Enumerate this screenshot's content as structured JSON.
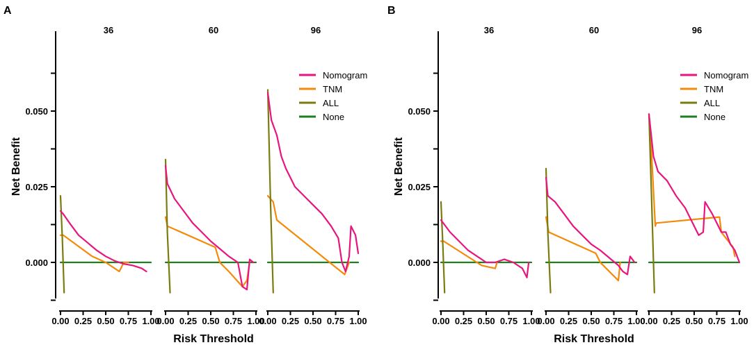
{
  "chart_data": [
    {
      "panel": "A",
      "type": "line",
      "facets": [
        "36",
        "60",
        "96"
      ],
      "xlabel": "Risk Threshold",
      "ylabel": "Net Benefit",
      "xlim": [
        0,
        1
      ],
      "ylim": [
        -0.015,
        0.075
      ],
      "xticks": [
        "0.00",
        "0.25",
        "0.50",
        "0.75",
        "1.00"
      ],
      "yticks": [
        "0.000",
        "0.025",
        "0.050"
      ],
      "legend": [
        "Nomogram",
        "TNM",
        "ALL",
        "None"
      ],
      "colors": {
        "Nomogram": "#e8157f",
        "TNM": "#f58a0a",
        "ALL": "#7b7b0e",
        "None": "#1e7d1e"
      },
      "series_by_facet": [
        {
          "Nomogram": [
            [
              0,
              0.017
            ],
            [
              0.03,
              0.016
            ],
            [
              0.1,
              0.013
            ],
            [
              0.2,
              0.009
            ],
            [
              0.3,
              0.0065
            ],
            [
              0.4,
              0.004
            ],
            [
              0.5,
              0.002
            ],
            [
              0.6,
              0.0005
            ],
            [
              0.7,
              -0.0005
            ],
            [
              0.8,
              -0.001
            ],
            [
              0.9,
              -0.002
            ],
            [
              0.95,
              -0.003
            ]
          ],
          "TNM": [
            [
              0,
              0.009
            ],
            [
              0.03,
              0.009
            ],
            [
              0.35,
              0.002
            ],
            [
              0.5,
              0.0
            ],
            [
              0.65,
              -0.003
            ],
            [
              0.7,
              0.0
            ],
            [
              0.75,
              0.0
            ]
          ],
          "ALL": [
            [
              0,
              0.022
            ],
            [
              0.02,
              0.008
            ],
            [
              0.04,
              -0.01
            ]
          ],
          "None": [
            [
              0,
              0
            ],
            [
              1,
              0
            ]
          ]
        },
        {
          "Nomogram": [
            [
              0,
              0.032
            ],
            [
              0.02,
              0.026
            ],
            [
              0.1,
              0.021
            ],
            [
              0.2,
              0.017
            ],
            [
              0.3,
              0.013
            ],
            [
              0.4,
              0.01
            ],
            [
              0.5,
              0.007
            ],
            [
              0.6,
              0.0045
            ],
            [
              0.7,
              0.002
            ],
            [
              0.8,
              0.0
            ],
            [
              0.85,
              -0.008
            ],
            [
              0.9,
              -0.009
            ],
            [
              0.93,
              0.001
            ],
            [
              0.97,
              0.0
            ]
          ],
          "TNM": [
            [
              0,
              0.015
            ],
            [
              0.02,
              0.012
            ],
            [
              0.55,
              0.005
            ],
            [
              0.6,
              0.0
            ],
            [
              0.7,
              -0.003
            ],
            [
              0.85,
              -0.008
            ],
            [
              0.9,
              -0.006
            ],
            [
              0.93,
              0.0
            ]
          ],
          "ALL": [
            [
              0,
              0.034
            ],
            [
              0.02,
              0.01
            ],
            [
              0.05,
              -0.01
            ]
          ],
          "None": [
            [
              0,
              0
            ],
            [
              1,
              0
            ]
          ]
        },
        {
          "Nomogram": [
            [
              0,
              0.056
            ],
            [
              0.04,
              0.047
            ],
            [
              0.1,
              0.042
            ],
            [
              0.15,
              0.035
            ],
            [
              0.2,
              0.031
            ],
            [
              0.3,
              0.025
            ],
            [
              0.4,
              0.022
            ],
            [
              0.5,
              0.019
            ],
            [
              0.6,
              0.016
            ],
            [
              0.7,
              0.012
            ],
            [
              0.78,
              0.008
            ],
            [
              0.82,
              0.0
            ],
            [
              0.86,
              -0.003
            ],
            [
              0.9,
              0.002
            ],
            [
              0.92,
              0.012
            ],
            [
              0.97,
              0.009
            ],
            [
              1.0,
              0.003
            ]
          ],
          "TNM": [
            [
              0,
              0.022
            ],
            [
              0.06,
              0.02
            ],
            [
              0.1,
              0.014
            ],
            [
              0.85,
              -0.004
            ],
            [
              0.9,
              0.0
            ]
          ],
          "ALL": [
            [
              0,
              0.057
            ],
            [
              0.03,
              0.02
            ],
            [
              0.06,
              -0.01
            ]
          ],
          "None": [
            [
              0,
              0
            ],
            [
              1,
              0
            ]
          ]
        }
      ]
    },
    {
      "panel": "B",
      "type": "line",
      "facets": [
        "36",
        "60",
        "96"
      ],
      "xlabel": "Risk Threshold",
      "ylabel": "Net Benefit",
      "xlim": [
        0,
        1
      ],
      "ylim": [
        -0.015,
        0.075
      ],
      "xticks": [
        "0.00",
        "0.25",
        "0.50",
        "0.75",
        "1.00"
      ],
      "yticks": [
        "0.000",
        "0.025",
        "0.050"
      ],
      "legend": [
        "Nomogram",
        "TNM",
        "ALL",
        "None"
      ],
      "colors": {
        "Nomogram": "#e8157f",
        "TNM": "#f58a0a",
        "ALL": "#7b7b0e",
        "None": "#1e7d1e"
      },
      "series_by_facet": [
        {
          "Nomogram": [
            [
              0,
              0.014
            ],
            [
              0.1,
              0.01
            ],
            [
              0.2,
              0.007
            ],
            [
              0.3,
              0.004
            ],
            [
              0.4,
              0.002
            ],
            [
              0.5,
              0.0
            ],
            [
              0.6,
              0.0
            ],
            [
              0.7,
              0.001
            ],
            [
              0.8,
              0.0
            ],
            [
              0.9,
              -0.002
            ],
            [
              0.95,
              -0.005
            ],
            [
              0.97,
              0.0
            ]
          ],
          "TNM": [
            [
              0,
              0.007
            ],
            [
              0.03,
              0.007
            ],
            [
              0.45,
              -0.001
            ],
            [
              0.6,
              -0.002
            ],
            [
              0.62,
              0.0
            ]
          ],
          "ALL": [
            [
              0,
              0.02
            ],
            [
              0.02,
              0.006
            ],
            [
              0.04,
              -0.01
            ]
          ],
          "None": [
            [
              0,
              0
            ],
            [
              1,
              0
            ]
          ]
        },
        {
          "Nomogram": [
            [
              0,
              0.028
            ],
            [
              0.02,
              0.022
            ],
            [
              0.1,
              0.02
            ],
            [
              0.2,
              0.016
            ],
            [
              0.3,
              0.012
            ],
            [
              0.4,
              0.009
            ],
            [
              0.5,
              0.006
            ],
            [
              0.6,
              0.004
            ],
            [
              0.7,
              0.0015
            ],
            [
              0.8,
              -0.001
            ],
            [
              0.85,
              -0.003
            ],
            [
              0.9,
              -0.004
            ],
            [
              0.93,
              0.002
            ],
            [
              0.98,
              0.0
            ]
          ],
          "TNM": [
            [
              0,
              0.015
            ],
            [
              0.03,
              0.01
            ],
            [
              0.55,
              0.003
            ],
            [
              0.6,
              0.0
            ],
            [
              0.8,
              -0.006
            ],
            [
              0.82,
              0.0
            ]
          ],
          "ALL": [
            [
              0,
              0.031
            ],
            [
              0.02,
              0.01
            ],
            [
              0.05,
              -0.01
            ]
          ],
          "None": [
            [
              0,
              0
            ],
            [
              1,
              0
            ]
          ]
        },
        {
          "Nomogram": [
            [
              0,
              0.049
            ],
            [
              0.05,
              0.035
            ],
            [
              0.1,
              0.03
            ],
            [
              0.2,
              0.027
            ],
            [
              0.3,
              0.022
            ],
            [
              0.4,
              0.018
            ],
            [
              0.5,
              0.012
            ],
            [
              0.55,
              0.009
            ],
            [
              0.6,
              0.01
            ],
            [
              0.62,
              0.02
            ],
            [
              0.7,
              0.016
            ],
            [
              0.75,
              0.013
            ],
            [
              0.8,
              0.01
            ],
            [
              0.85,
              0.01
            ],
            [
              0.9,
              0.006
            ],
            [
              0.95,
              0.004
            ],
            [
              1.0,
              0.0
            ]
          ],
          "TNM": [
            [
              0,
              0.049
            ],
            [
              0.03,
              0.035
            ],
            [
              0.07,
              0.012
            ],
            [
              0.08,
              0.013
            ],
            [
              0.78,
              0.015
            ],
            [
              0.8,
              0.01
            ],
            [
              0.93,
              0.005
            ],
            [
              0.95,
              0.002
            ]
          ],
          "ALL": [
            [
              0,
              0.049
            ],
            [
              0.03,
              0.02
            ],
            [
              0.06,
              -0.01
            ]
          ],
          "None": [
            [
              0,
              0
            ],
            [
              1,
              0
            ]
          ]
        }
      ]
    }
  ]
}
